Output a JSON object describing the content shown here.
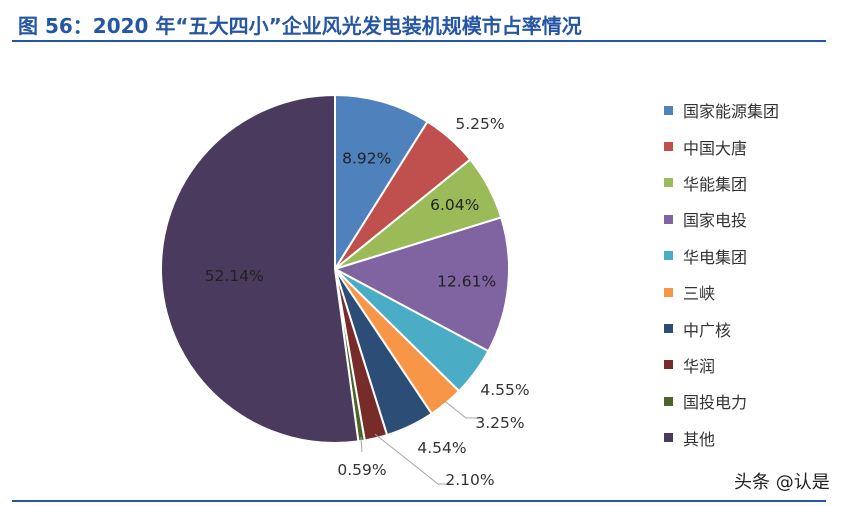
{
  "header": {
    "title": "图 56：2020 年“五大四小”企业风光发电装机规模市占率情况"
  },
  "watermark": "头条 @认是",
  "chart_data": {
    "type": "pie",
    "title": "",
    "legend_position": "right",
    "slices": [
      {
        "name": "国家能源集团",
        "value": 8.92,
        "label": "8.92%",
        "color": "#4f81bd"
      },
      {
        "name": "中国大唐",
        "value": 5.25,
        "label": "5.25%",
        "color": "#c0504d"
      },
      {
        "name": "华能集团",
        "value": 6.04,
        "label": "6.04%",
        "color": "#9bbb59"
      },
      {
        "name": "国家电投",
        "value": 12.61,
        "label": "12.61%",
        "color": "#8064a2"
      },
      {
        "name": "华电集团",
        "value": 4.55,
        "label": "4.55%",
        "color": "#4bacc6"
      },
      {
        "name": "三峡",
        "value": 3.25,
        "label": "3.25%",
        "color": "#f79646"
      },
      {
        "name": "中广核",
        "value": 4.54,
        "label": "4.54%",
        "color": "#2c4d75"
      },
      {
        "name": "华润",
        "value": 2.1,
        "label": "2.10%",
        "color": "#772c2a"
      },
      {
        "name": "国投电力",
        "value": 0.59,
        "label": "0.59%",
        "color": "#4f6228"
      },
      {
        "name": "其他",
        "value": 52.14,
        "label": "52.14%",
        "color": "#4a3a5e"
      }
    ]
  }
}
